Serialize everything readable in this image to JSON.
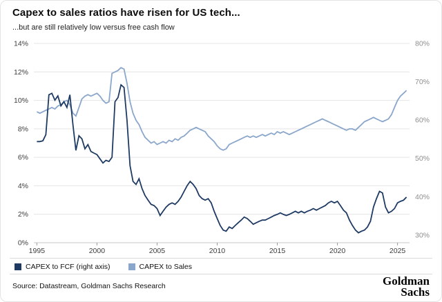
{
  "header": {
    "title": "Capex to sales ratios have risen for US tech...",
    "subtitle": "...but are still relatively low versus free cash flow"
  },
  "legend": {
    "items": [
      {
        "label": "CAPEX to FCF (right axis)",
        "color": "#1e3a63"
      },
      {
        "label": "CAPEX to Sales",
        "color": "#8aa6cb"
      }
    ]
  },
  "footer": {
    "source": "Source: Datastream, Goldman Sachs Research",
    "logo_line1": "Goldman",
    "logo_line2": "Sachs"
  },
  "chart_data": {
    "type": "line",
    "title": "Capex to sales ratios have risen for US tech...",
    "subtitle": "...but are still relatively low versus free cash flow",
    "grid": true,
    "legend_position": "bottom-left",
    "x_range": [
      1994.75,
      2026
    ],
    "x_axis": {
      "tick_values": [
        1995,
        2000,
        2005,
        2010,
        2015,
        2020,
        2025
      ],
      "tick_labels": [
        "1995",
        "2000",
        "2005",
        "2010",
        "2015",
        "2020",
        "2025"
      ]
    },
    "left_axis": {
      "range": [
        0,
        14
      ],
      "tick_values": [
        14,
        12,
        10,
        8,
        6,
        4,
        2,
        0
      ],
      "tick_labels": [
        "14%",
        "12%",
        "10%",
        "8%",
        "6%",
        "4%",
        "2%",
        "0%"
      ]
    },
    "right_axis": {
      "range": [
        28,
        80
      ],
      "tick_values": [
        80,
        70,
        60,
        50,
        40,
        30
      ],
      "tick_labels": [
        "80%",
        "70%",
        "60%",
        "50%",
        "40%",
        "30%"
      ]
    },
    "series": [
      {
        "name": "CAPEX to Sales",
        "axis": "left",
        "color": "#8aa6cb",
        "points": [
          [
            1995,
            9.2
          ],
          [
            1995.25,
            9.1
          ],
          [
            1995.5,
            9.2
          ],
          [
            1995.75,
            9.3
          ],
          [
            1996,
            9.4
          ],
          [
            1996.25,
            9.5
          ],
          [
            1996.5,
            9.4
          ],
          [
            1996.75,
            9.6
          ],
          [
            1997,
            9.7
          ],
          [
            1997.25,
            9.9
          ],
          [
            1997.5,
            10.0
          ],
          [
            1997.75,
            9.7
          ],
          [
            1998,
            9.1
          ],
          [
            1998.25,
            8.9
          ],
          [
            1998.5,
            9.5
          ],
          [
            1998.75,
            10.1
          ],
          [
            1999,
            10.3
          ],
          [
            1999.25,
            10.4
          ],
          [
            1999.5,
            10.3
          ],
          [
            1999.75,
            10.4
          ],
          [
            2000,
            10.5
          ],
          [
            2000.25,
            10.3
          ],
          [
            2000.5,
            10.0
          ],
          [
            2000.75,
            9.8
          ],
          [
            2001,
            9.9
          ],
          [
            2001.25,
            11.9
          ],
          [
            2001.5,
            12.0
          ],
          [
            2001.75,
            12.1
          ],
          [
            2002,
            12.3
          ],
          [
            2002.25,
            12.2
          ],
          [
            2002.5,
            11.2
          ],
          [
            2002.75,
            9.9
          ],
          [
            2003,
            9.1
          ],
          [
            2003.25,
            8.6
          ],
          [
            2003.5,
            8.3
          ],
          [
            2003.75,
            7.8
          ],
          [
            2004,
            7.4
          ],
          [
            2004.25,
            7.2
          ],
          [
            2004.5,
            7.0
          ],
          [
            2004.75,
            7.1
          ],
          [
            2005,
            6.9
          ],
          [
            2005.25,
            7.0
          ],
          [
            2005.5,
            7.1
          ],
          [
            2005.75,
            7.0
          ],
          [
            2006,
            7.2
          ],
          [
            2006.25,
            7.1
          ],
          [
            2006.5,
            7.3
          ],
          [
            2006.75,
            7.2
          ],
          [
            2007,
            7.4
          ],
          [
            2007.25,
            7.5
          ],
          [
            2007.5,
            7.7
          ],
          [
            2007.75,
            7.9
          ],
          [
            2008,
            8.0
          ],
          [
            2008.25,
            8.1
          ],
          [
            2008.5,
            8.0
          ],
          [
            2008.75,
            7.9
          ],
          [
            2009,
            7.8
          ],
          [
            2009.25,
            7.5
          ],
          [
            2009.5,
            7.3
          ],
          [
            2009.75,
            7.1
          ],
          [
            2010,
            6.8
          ],
          [
            2010.25,
            6.6
          ],
          [
            2010.5,
            6.5
          ],
          [
            2010.75,
            6.6
          ],
          [
            2011,
            6.9
          ],
          [
            2011.25,
            7.0
          ],
          [
            2011.5,
            7.1
          ],
          [
            2011.75,
            7.2
          ],
          [
            2012,
            7.3
          ],
          [
            2012.25,
            7.4
          ],
          [
            2012.5,
            7.5
          ],
          [
            2012.75,
            7.4
          ],
          [
            2013,
            7.5
          ],
          [
            2013.25,
            7.4
          ],
          [
            2013.5,
            7.5
          ],
          [
            2013.75,
            7.6
          ],
          [
            2014,
            7.5
          ],
          [
            2014.25,
            7.6
          ],
          [
            2014.5,
            7.7
          ],
          [
            2014.75,
            7.6
          ],
          [
            2015,
            7.8
          ],
          [
            2015.25,
            7.7
          ],
          [
            2015.5,
            7.8
          ],
          [
            2015.75,
            7.7
          ],
          [
            2016,
            7.6
          ],
          [
            2016.25,
            7.7
          ],
          [
            2016.5,
            7.8
          ],
          [
            2016.75,
            7.9
          ],
          [
            2017,
            8.0
          ],
          [
            2017.25,
            8.1
          ],
          [
            2017.5,
            8.2
          ],
          [
            2017.75,
            8.3
          ],
          [
            2018,
            8.4
          ],
          [
            2018.25,
            8.5
          ],
          [
            2018.5,
            8.6
          ],
          [
            2018.75,
            8.7
          ],
          [
            2019,
            8.6
          ],
          [
            2019.25,
            8.5
          ],
          [
            2019.5,
            8.4
          ],
          [
            2019.75,
            8.3
          ],
          [
            2020,
            8.2
          ],
          [
            2020.25,
            8.1
          ],
          [
            2020.5,
            8.0
          ],
          [
            2020.75,
            7.9
          ],
          [
            2021,
            8.0
          ],
          [
            2021.25,
            8.0
          ],
          [
            2021.5,
            7.9
          ],
          [
            2021.75,
            8.1
          ],
          [
            2022,
            8.3
          ],
          [
            2022.25,
            8.5
          ],
          [
            2022.5,
            8.6
          ],
          [
            2022.75,
            8.7
          ],
          [
            2023,
            8.8
          ],
          [
            2023.25,
            8.7
          ],
          [
            2023.5,
            8.6
          ],
          [
            2023.75,
            8.5
          ],
          [
            2024,
            8.6
          ],
          [
            2024.25,
            8.7
          ],
          [
            2024.5,
            9.0
          ],
          [
            2024.75,
            9.5
          ],
          [
            2025,
            10.0
          ],
          [
            2025.25,
            10.3
          ],
          [
            2025.5,
            10.5
          ],
          [
            2025.75,
            10.7
          ]
        ]
      },
      {
        "name": "CAPEX to FCF (right axis)",
        "axis": "right",
        "color": "#1e3a63",
        "points": [
          [
            1995,
            54.4
          ],
          [
            1995.25,
            54.4
          ],
          [
            1995.5,
            54.6
          ],
          [
            1995.75,
            56.2
          ],
          [
            1996,
            66.6
          ],
          [
            1996.25,
            67.0
          ],
          [
            1996.5,
            65.2
          ],
          [
            1996.75,
            66.3
          ],
          [
            1997,
            63.7
          ],
          [
            1997.25,
            64.8
          ],
          [
            1997.5,
            63.3
          ],
          [
            1997.75,
            66.6
          ],
          [
            1998,
            58.8
          ],
          [
            1998.25,
            52.1
          ],
          [
            1998.5,
            55.9
          ],
          [
            1998.75,
            55.1
          ],
          [
            1999,
            52.5
          ],
          [
            1999.25,
            53.6
          ],
          [
            1999.5,
            51.8
          ],
          [
            1999.75,
            51.4
          ],
          [
            2000,
            51.0
          ],
          [
            2000.25,
            49.9
          ],
          [
            2000.5,
            48.8
          ],
          [
            2000.75,
            49.5
          ],
          [
            2001,
            49.2
          ],
          [
            2001.25,
            50.3
          ],
          [
            2001.5,
            64.8
          ],
          [
            2001.75,
            65.9
          ],
          [
            2002,
            69.2
          ],
          [
            2002.25,
            68.5
          ],
          [
            2002.5,
            59.9
          ],
          [
            2002.75,
            48.1
          ],
          [
            2003,
            44.0
          ],
          [
            2003.25,
            43.2
          ],
          [
            2003.5,
            44.7
          ],
          [
            2003.75,
            42.1
          ],
          [
            2004,
            40.3
          ],
          [
            2004.25,
            39.1
          ],
          [
            2004.5,
            38.0
          ],
          [
            2004.75,
            37.7
          ],
          [
            2005,
            36.9
          ],
          [
            2005.25,
            35.1
          ],
          [
            2005.5,
            36.2
          ],
          [
            2005.75,
            37.3
          ],
          [
            2006,
            38.0
          ],
          [
            2006.25,
            38.4
          ],
          [
            2006.5,
            38.0
          ],
          [
            2006.75,
            38.8
          ],
          [
            2007,
            39.9
          ],
          [
            2007.25,
            41.4
          ],
          [
            2007.5,
            42.9
          ],
          [
            2007.75,
            44.0
          ],
          [
            2008,
            43.2
          ],
          [
            2008.25,
            42.1
          ],
          [
            2008.5,
            40.3
          ],
          [
            2008.75,
            39.5
          ],
          [
            2009,
            39.1
          ],
          [
            2009.25,
            39.5
          ],
          [
            2009.5,
            38.4
          ],
          [
            2009.75,
            36.2
          ],
          [
            2010,
            34.3
          ],
          [
            2010.25,
            32.5
          ],
          [
            2010.5,
            31.3
          ],
          [
            2010.75,
            31.0
          ],
          [
            2011,
            32.1
          ],
          [
            2011.25,
            31.7
          ],
          [
            2011.5,
            32.5
          ],
          [
            2011.75,
            33.2
          ],
          [
            2012,
            33.9
          ],
          [
            2012.25,
            34.7
          ],
          [
            2012.5,
            34.3
          ],
          [
            2012.75,
            33.6
          ],
          [
            2013,
            32.8
          ],
          [
            2013.25,
            33.2
          ],
          [
            2013.5,
            33.6
          ],
          [
            2013.75,
            33.9
          ],
          [
            2014,
            33.9
          ],
          [
            2014.25,
            34.3
          ],
          [
            2014.5,
            34.7
          ],
          [
            2014.75,
            35.1
          ],
          [
            2015,
            35.4
          ],
          [
            2015.25,
            35.8
          ],
          [
            2015.5,
            35.4
          ],
          [
            2015.75,
            35.1
          ],
          [
            2016,
            35.4
          ],
          [
            2016.25,
            35.8
          ],
          [
            2016.5,
            36.2
          ],
          [
            2016.75,
            35.8
          ],
          [
            2017,
            36.2
          ],
          [
            2017.25,
            35.8
          ],
          [
            2017.5,
            36.2
          ],
          [
            2017.75,
            36.5
          ],
          [
            2018,
            36.9
          ],
          [
            2018.25,
            36.5
          ],
          [
            2018.5,
            36.9
          ],
          [
            2018.75,
            37.3
          ],
          [
            2019,
            37.7
          ],
          [
            2019.25,
            38.4
          ],
          [
            2019.5,
            38.8
          ],
          [
            2019.75,
            38.4
          ],
          [
            2020,
            38.8
          ],
          [
            2020.25,
            37.7
          ],
          [
            2020.5,
            36.5
          ],
          [
            2020.75,
            35.8
          ],
          [
            2021,
            33.9
          ],
          [
            2021.25,
            32.5
          ],
          [
            2021.5,
            31.3
          ],
          [
            2021.75,
            30.6
          ],
          [
            2022,
            31.0
          ],
          [
            2022.25,
            31.3
          ],
          [
            2022.5,
            32.1
          ],
          [
            2022.75,
            33.6
          ],
          [
            2023,
            37.3
          ],
          [
            2023.25,
            39.5
          ],
          [
            2023.5,
            41.4
          ],
          [
            2023.75,
            41.0
          ],
          [
            2024,
            37.3
          ],
          [
            2024.25,
            35.8
          ],
          [
            2024.5,
            36.2
          ],
          [
            2024.75,
            36.9
          ],
          [
            2025,
            38.4
          ],
          [
            2025.25,
            38.8
          ],
          [
            2025.5,
            39.1
          ],
          [
            2025.75,
            39.9
          ]
        ]
      }
    ]
  }
}
